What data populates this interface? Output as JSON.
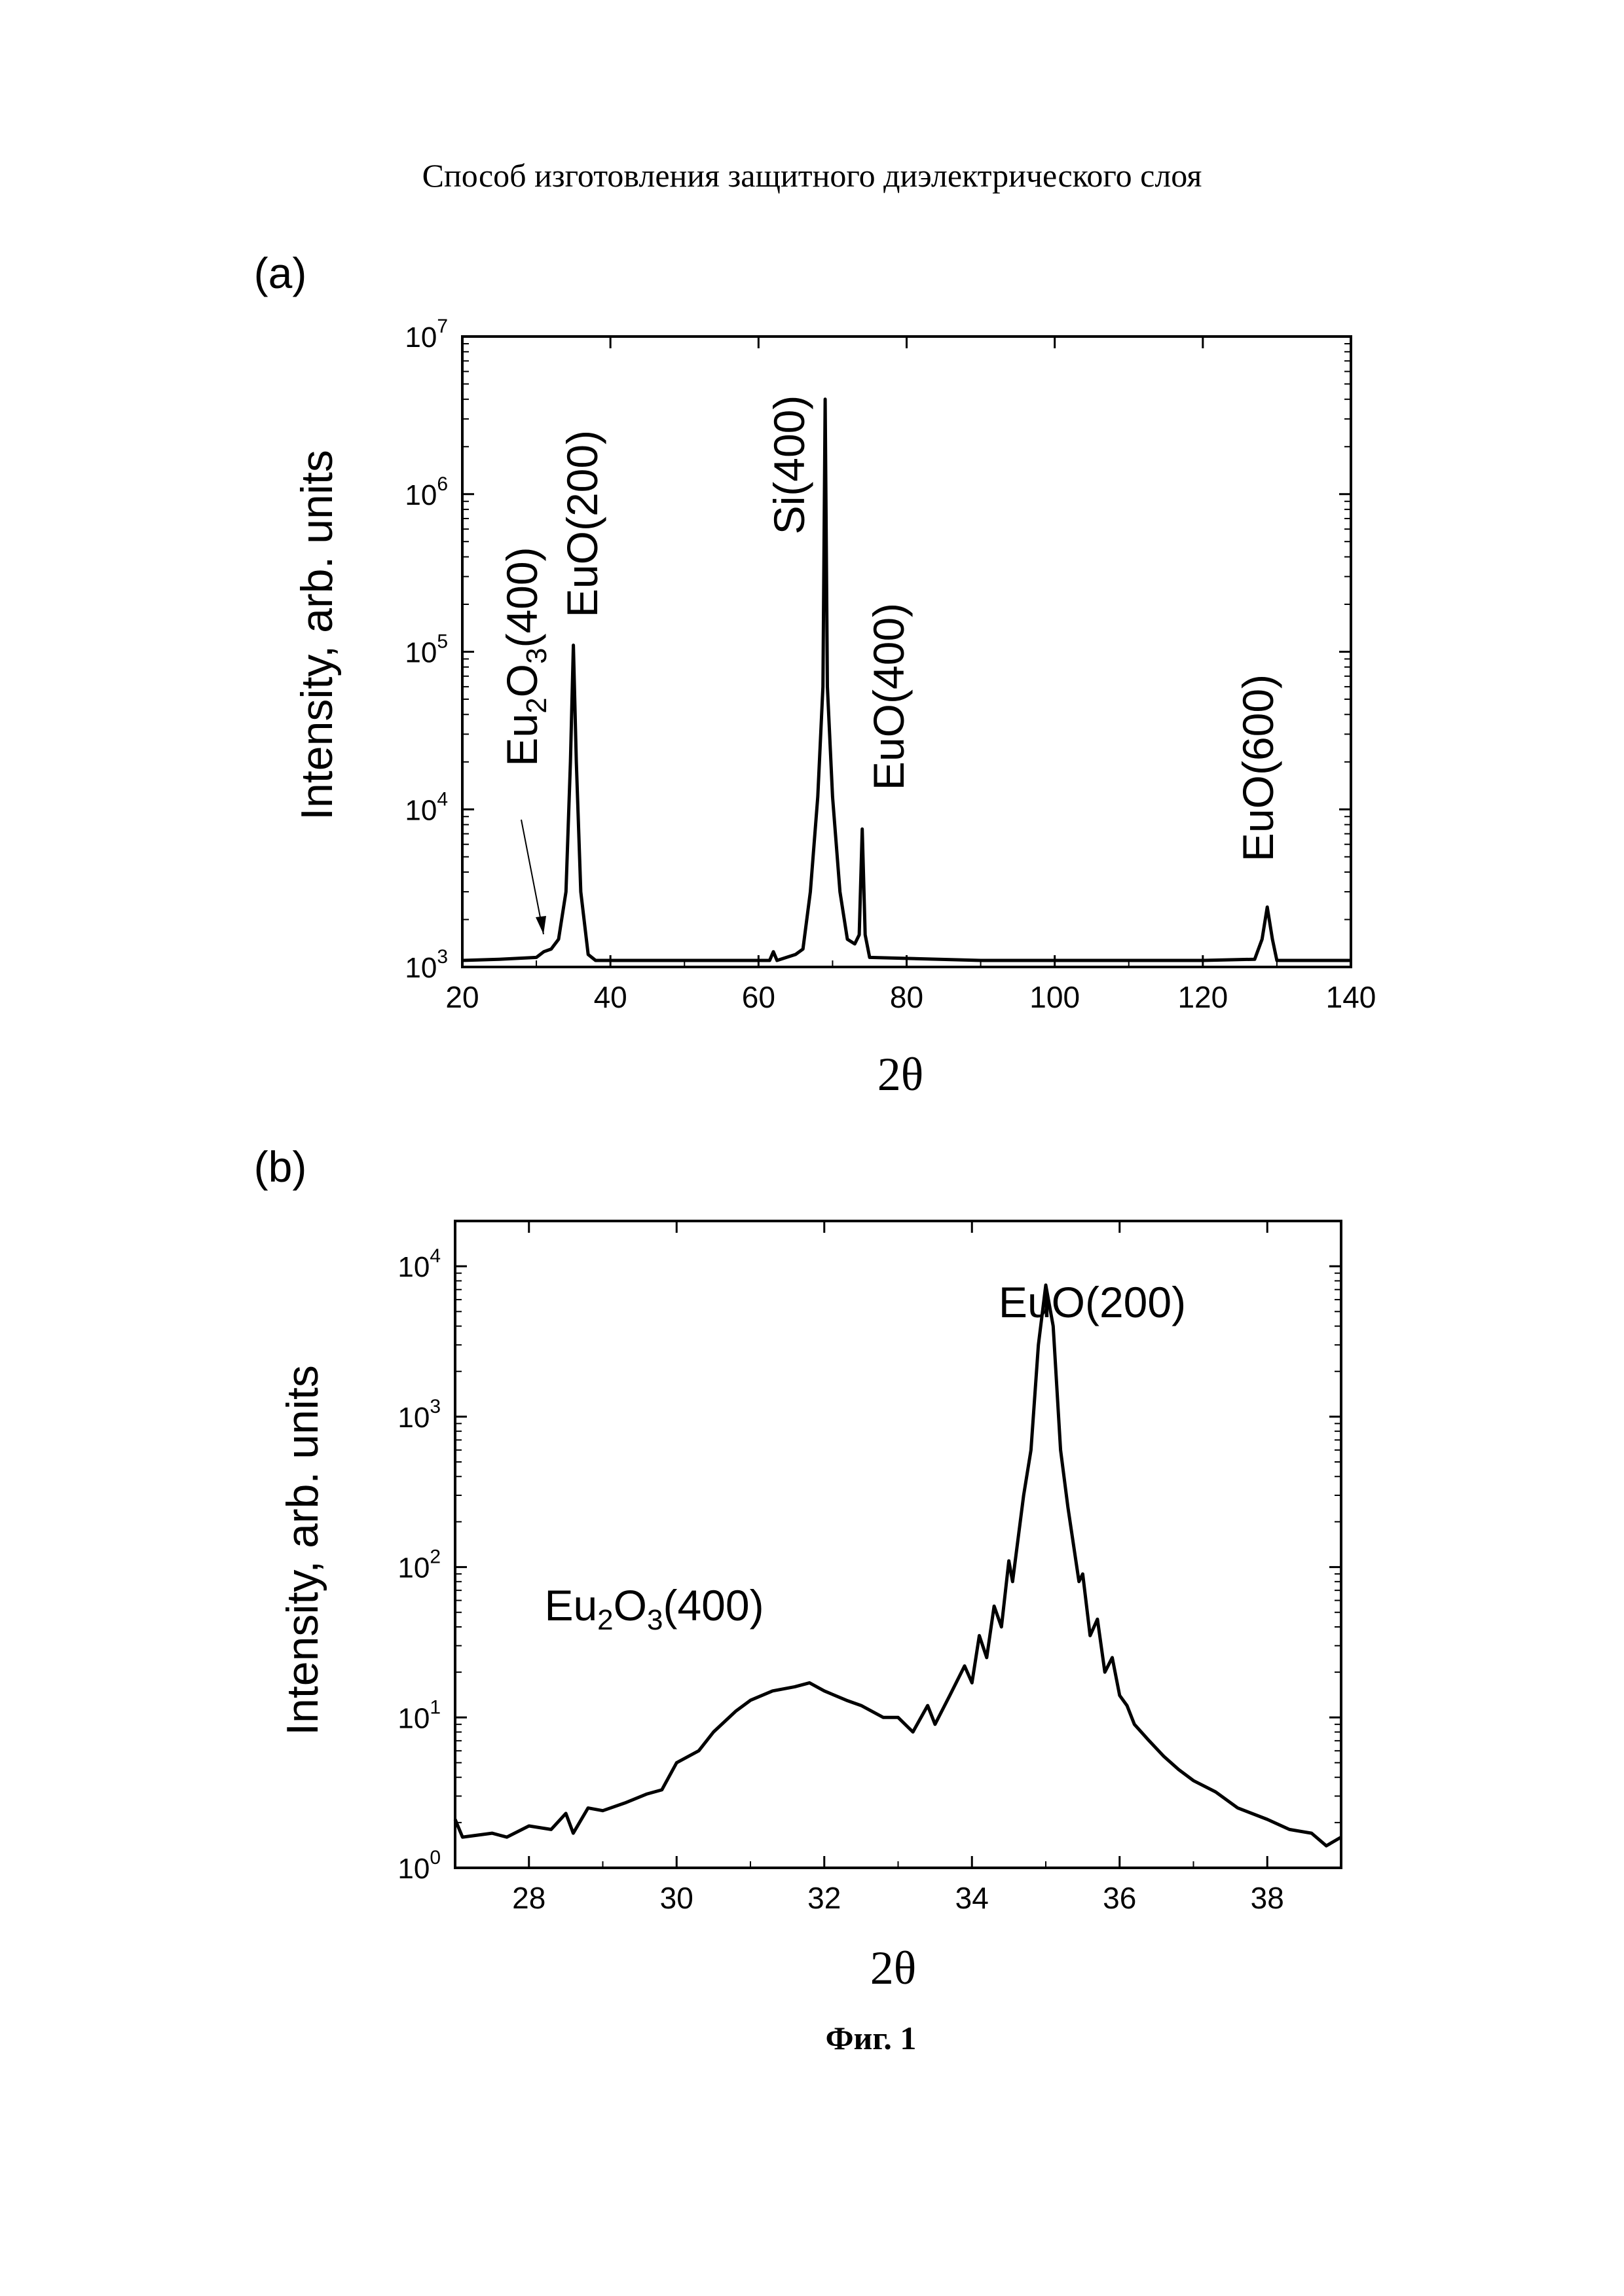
{
  "page_title": "Способ изготовления защитного диэлектрического слоя",
  "figure_caption": "Фиг. 1",
  "chart_data": [
    {
      "type": "line",
      "panel_label": "(a)",
      "xlabel": "2θ",
      "ylabel": "Intensity, arb. units",
      "yscale": "log",
      "xlim": [
        20,
        140
      ],
      "ylim": [
        1000,
        10000000
      ],
      "x_ticks": [
        "20",
        "40",
        "60",
        "80",
        "100",
        "120",
        "140"
      ],
      "y_tick_base": "10",
      "y_tick_exponents": [
        "3",
        "4",
        "5",
        "6",
        "7"
      ],
      "series": [
        {
          "name": "XRD scan",
          "points": [
            [
              20,
              1100
            ],
            [
              25,
              1120
            ],
            [
              30,
              1150
            ],
            [
              31,
              1250
            ],
            [
              32,
              1300
            ],
            [
              33,
              1500
            ],
            [
              34,
              3000
            ],
            [
              34.6,
              20000
            ],
            [
              35,
              110000
            ],
            [
              35.4,
              20000
            ],
            [
              36,
              3000
            ],
            [
              37,
              1200
            ],
            [
              38,
              1100
            ],
            [
              50,
              1100
            ],
            [
              60,
              1100
            ],
            [
              61.5,
              1100
            ],
            [
              62,
              1250
            ],
            [
              62.5,
              1100
            ],
            [
              65,
              1200
            ],
            [
              66,
              1300
            ],
            [
              67,
              3000
            ],
            [
              68,
              12000
            ],
            [
              68.7,
              60000
            ],
            [
              69,
              4000000
            ],
            [
              69.3,
              60000
            ],
            [
              70,
              12000
            ],
            [
              71,
              3000
            ],
            [
              72,
              1500
            ],
            [
              73,
              1400
            ],
            [
              73.6,
              1600
            ],
            [
              74,
              7500
            ],
            [
              74.4,
              1600
            ],
            [
              75,
              1150
            ],
            [
              90,
              1100
            ],
            [
              100,
              1100
            ],
            [
              120,
              1100
            ],
            [
              127,
              1120
            ],
            [
              128,
              1500
            ],
            [
              128.7,
              2400
            ],
            [
              129.4,
              1500
            ],
            [
              130,
              1100
            ],
            [
              140,
              1100
            ]
          ]
        }
      ],
      "annotations": [
        {
          "segments": [
            {
              "t": "Eu"
            },
            {
              "t": "2",
              "sub": true
            },
            {
              "t": "O"
            },
            {
              "t": "3",
              "sub": true
            },
            {
              "t": "(400)"
            }
          ],
          "x": 31,
          "orientation": "vertical",
          "arrow": true
        },
        {
          "segments": [
            {
              "t": "EuO(200)"
            }
          ],
          "x": 35,
          "orientation": "vertical"
        },
        {
          "segments": [
            {
              "t": "Si(400)"
            }
          ],
          "x": 69,
          "orientation": "vertical"
        },
        {
          "segments": [
            {
              "t": "EuO(400)"
            }
          ],
          "x": 74,
          "orientation": "vertical"
        },
        {
          "segments": [
            {
              "t": "EuO(600)"
            }
          ],
          "x": 129,
          "orientation": "vertical"
        }
      ]
    },
    {
      "type": "line",
      "panel_label": "(b)",
      "xlabel": "2θ",
      "ylabel": "Intensity, arb. units",
      "yscale": "log",
      "xlim": [
        27,
        39
      ],
      "ylim": [
        1,
        20000
      ],
      "x_ticks": [
        "28",
        "30",
        "32",
        "34",
        "36",
        "38"
      ],
      "y_tick_base": "10",
      "y_tick_exponents": [
        "0",
        "1",
        "2",
        "3",
        "4"
      ],
      "series": [
        {
          "name": "XRD scan",
          "points": [
            [
              27,
              2.1
            ],
            [
              27.1,
              1.6
            ],
            [
              27.5,
              1.7
            ],
            [
              27.7,
              1.6
            ],
            [
              28,
              1.9
            ],
            [
              28.3,
              1.8
            ],
            [
              28.5,
              2.3
            ],
            [
              28.6,
              1.7
            ],
            [
              28.8,
              2.5
            ],
            [
              29,
              2.4
            ],
            [
              29.3,
              2.7
            ],
            [
              29.6,
              3.1
            ],
            [
              29.8,
              3.3
            ],
            [
              30,
              5
            ],
            [
              30.3,
              6
            ],
            [
              30.5,
              8
            ],
            [
              30.8,
              11
            ],
            [
              31,
              13
            ],
            [
              31.3,
              15
            ],
            [
              31.6,
              16
            ],
            [
              31.8,
              17
            ],
            [
              32,
              15
            ],
            [
              32.3,
              13
            ],
            [
              32.5,
              12
            ],
            [
              32.8,
              10
            ],
            [
              33,
              10
            ],
            [
              33.2,
              8
            ],
            [
              33.4,
              12
            ],
            [
              33.5,
              9
            ],
            [
              33.7,
              14
            ],
            [
              33.9,
              22
            ],
            [
              34,
              17
            ],
            [
              34.1,
              35
            ],
            [
              34.2,
              25
            ],
            [
              34.3,
              55
            ],
            [
              34.4,
              40
            ],
            [
              34.5,
              110
            ],
            [
              34.55,
              80
            ],
            [
              34.7,
              300
            ],
            [
              34.8,
              600
            ],
            [
              34.9,
              3000
            ],
            [
              35,
              7500
            ],
            [
              35.1,
              4000
            ],
            [
              35.2,
              600
            ],
            [
              35.3,
              250
            ],
            [
              35.45,
              80
            ],
            [
              35.5,
              90
            ],
            [
              35.6,
              35
            ],
            [
              35.7,
              45
            ],
            [
              35.8,
              20
            ],
            [
              35.9,
              25
            ],
            [
              36,
              14
            ],
            [
              36.1,
              12
            ],
            [
              36.2,
              9
            ],
            [
              36.4,
              7
            ],
            [
              36.6,
              5.5
            ],
            [
              36.8,
              4.5
            ],
            [
              37,
              3.8
            ],
            [
              37.3,
              3.2
            ],
            [
              37.6,
              2.5
            ],
            [
              38,
              2.1
            ],
            [
              38.3,
              1.8
            ],
            [
              38.6,
              1.7
            ],
            [
              38.8,
              1.4
            ],
            [
              39,
              1.6
            ]
          ]
        }
      ],
      "annotations": [
        {
          "segments": [
            {
              "t": "EuO(200)"
            }
          ],
          "x": 35,
          "orientation": "horizontal"
        },
        {
          "segments": [
            {
              "t": "Eu"
            },
            {
              "t": "2",
              "sub": true
            },
            {
              "t": "O"
            },
            {
              "t": "3",
              "sub": true
            },
            {
              "t": "(400)"
            }
          ],
          "x": 31.5,
          "orientation": "horizontal"
        }
      ]
    }
  ]
}
